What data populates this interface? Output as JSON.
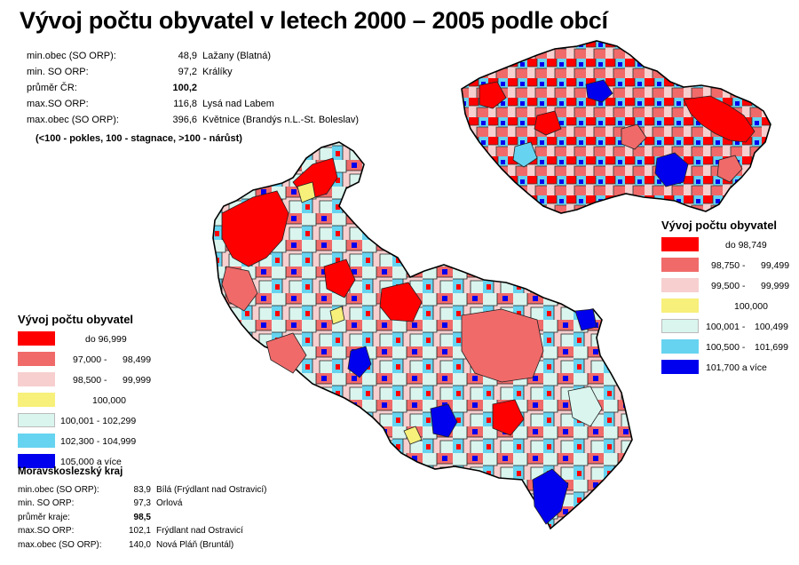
{
  "title": "Vývoj počtu obyvatel v letech 2000 – 2005 podle obcí",
  "cr_stats": [
    {
      "label": "min.obec (SO ORP):",
      "value": "48,9",
      "name": "Lažany (Blatná)",
      "bold": false
    },
    {
      "label": "min. SO ORP:",
      "value": "97,2",
      "name": "Králíky",
      "bold": false
    },
    {
      "label": "průměr ČR:",
      "value": "100,2",
      "name": "",
      "bold": true
    },
    {
      "label": "max.SO ORP:",
      "value": "116,8",
      "name": "Lysá nad Labem",
      "bold": false
    },
    {
      "label": "max.obec (SO ORP):",
      "value": "396,6",
      "name": "Květnice (Brandýs n.L.-St. Boleslav)",
      "bold": false
    }
  ],
  "note": "(<100 - pokles, 100 - stagnace, >100 - nárůst)",
  "legend_cr": {
    "title": "Vývoj počtu obyvatel",
    "items": [
      {
        "color": "#ff0000",
        "from": "do 98,749",
        "to": ""
      },
      {
        "color": "#f06a6a",
        "from": "98,750 -",
        "to": "99,499"
      },
      {
        "color": "#f7cfcf",
        "from": "99,500 -",
        "to": "99,999"
      },
      {
        "color": "#f7f07a",
        "from": "100,000",
        "to": ""
      },
      {
        "color": "#d9f5ee",
        "from": "100,001 -",
        "to": "100,499"
      },
      {
        "color": "#66d3f0",
        "from": "100,500 -",
        "to": "101,699"
      },
      {
        "color": "#0000ee",
        "from": "101,700 a více",
        "to": ""
      }
    ]
  },
  "legend_region": {
    "title": "Vývoj počtu obyvatel",
    "items": [
      {
        "color": "#ff0000",
        "from": "do 96,999",
        "to": ""
      },
      {
        "color": "#f06a6a",
        "from": "97,000 -",
        "to": "98,499"
      },
      {
        "color": "#f7cfcf",
        "from": "98,500 -",
        "to": "99,999"
      },
      {
        "color": "#f7f07a",
        "from": "100,000",
        "to": ""
      },
      {
        "color": "#d9f5ee",
        "from": "100,001 - 102,299",
        "to": ""
      },
      {
        "color": "#66d3f0",
        "from": "102,300 - 104,999",
        "to": ""
      },
      {
        "color": "#0000ee",
        "from": "105,000 a více",
        "to": ""
      }
    ]
  },
  "region_stats": {
    "heading": "Moravskoslezský kraj",
    "rows": [
      {
        "label": "min.obec (SO ORP):",
        "value": "83,9",
        "name": "Bílá (Frýdlant nad Ostravicí)",
        "bold": false
      },
      {
        "label": "min. SO ORP:",
        "value": "97,3",
        "name": "Orlová",
        "bold": false
      },
      {
        "label": "průměr kraje:",
        "value": "98,5",
        "name": "",
        "bold": true
      },
      {
        "label": "max.SO ORP:",
        "value": "102,1",
        "name": "Frýdlant nad Ostravicí",
        "bold": false
      },
      {
        "label": "max.obec (SO ORP):",
        "value": "140,0",
        "name": "Nová Pláň (Bruntál)",
        "bold": false
      }
    ]
  }
}
